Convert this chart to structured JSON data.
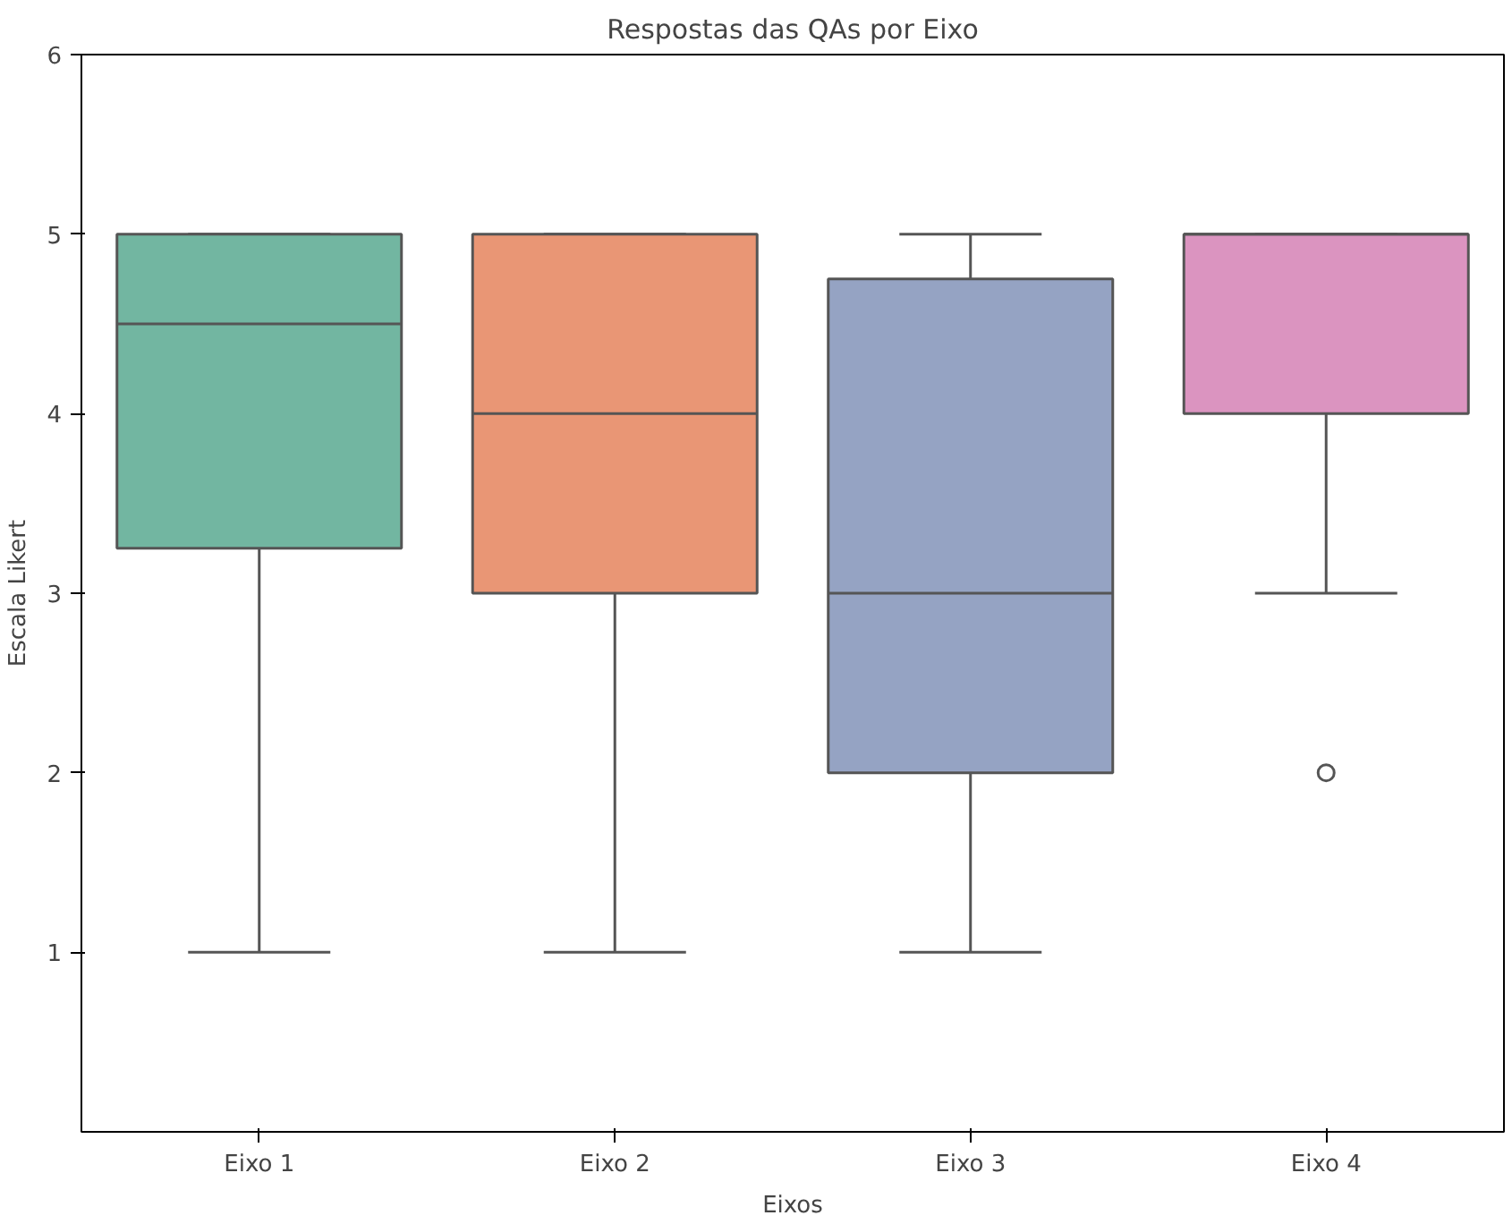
{
  "chart_data": {
    "type": "box",
    "title": "Respostas das QAs por Eixo",
    "xlabel": "Eixos",
    "ylabel": "Escala Likert",
    "categories": [
      "Eixo 1",
      "Eixo 2",
      "Eixo 3",
      "Eixo 4"
    ],
    "colors": [
      "#72b6a1",
      "#e99675",
      "#95a3c3",
      "#db94c0"
    ],
    "boxes": [
      {
        "low": 1,
        "q1": 3.25,
        "median": 4.5,
        "q3": 5,
        "high": 5
      },
      {
        "low": 1,
        "q1": 3,
        "median": 4,
        "q3": 5,
        "high": 5
      },
      {
        "low": 1,
        "q1": 2,
        "median": 3,
        "q3": 4.75,
        "high": 5
      },
      {
        "low": 3,
        "q1": 4,
        "median": 5,
        "q3": 5,
        "high": 5,
        "outliers": [
          2
        ]
      }
    ],
    "ylim": [
      0,
      6
    ],
    "yticks": [
      1,
      2,
      3,
      4,
      5,
      6
    ],
    "grid": false
  }
}
